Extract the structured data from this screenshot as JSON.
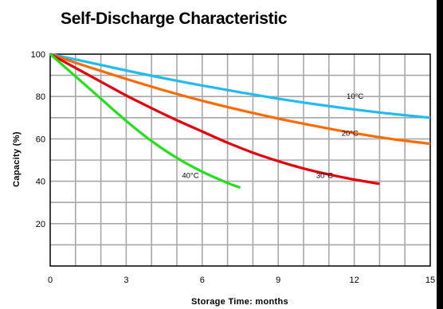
{
  "chart_data": {
    "type": "line",
    "title": "Self-Discharge Characteristic",
    "xlabel": "Storage Time: months",
    "ylabel": "Capacity (%)",
    "xlim": [
      0,
      15
    ],
    "ylim": [
      0,
      100
    ],
    "x_ticks": [
      0,
      3,
      6,
      9,
      12,
      15
    ],
    "y_ticks": [
      20,
      40,
      60,
      80,
      100
    ],
    "grid": true,
    "legend": "none",
    "series": [
      {
        "name": "10°C",
        "color": "#22bbee",
        "x": [
          0,
          1.5,
          3,
          4.5,
          6,
          7.5,
          9,
          10.5,
          12,
          13.5,
          15
        ],
        "y": [
          100,
          96.2,
          92.3,
          88.6,
          85.2,
          82.0,
          79.0,
          76.3,
          73.9,
          71.8,
          70.0
        ]
      },
      {
        "name": "20°C",
        "color": "#ff6a00",
        "x": [
          0,
          1.5,
          3,
          4.5,
          6,
          7.5,
          9,
          10.5,
          12,
          13.5,
          15
        ],
        "y": [
          100,
          94.0,
          88.3,
          82.9,
          78.0,
          73.6,
          69.6,
          66.0,
          62.7,
          59.9,
          57.7
        ]
      },
      {
        "name": "30°C",
        "color": "#e3000b",
        "x": [
          0,
          1,
          2,
          3,
          4,
          5,
          6,
          7,
          8,
          9,
          10,
          11,
          12,
          13
        ],
        "y": [
          100,
          93.5,
          87.0,
          80.5,
          74.5,
          68.8,
          63.5,
          58.2,
          53.5,
          49.5,
          46.0,
          43.2,
          40.8,
          38.8
        ]
      },
      {
        "name": "40°C",
        "color": "#22e01c",
        "x": [
          0,
          1,
          2,
          3,
          4,
          5,
          6,
          7,
          7.5
        ],
        "y": [
          100,
          89.5,
          79.0,
          68.5,
          59.0,
          51.0,
          44.5,
          39.2,
          37.0
        ]
      }
    ],
    "annotations": [
      {
        "text": "10°C",
        "x": 11.7,
        "y": 79
      },
      {
        "text": "20°C",
        "x": 11.5,
        "y": 61.5
      },
      {
        "text": "30°C",
        "x": 10.5,
        "y": 41.5
      },
      {
        "text": "40°C",
        "x": 5.2,
        "y": 41.5
      }
    ]
  }
}
